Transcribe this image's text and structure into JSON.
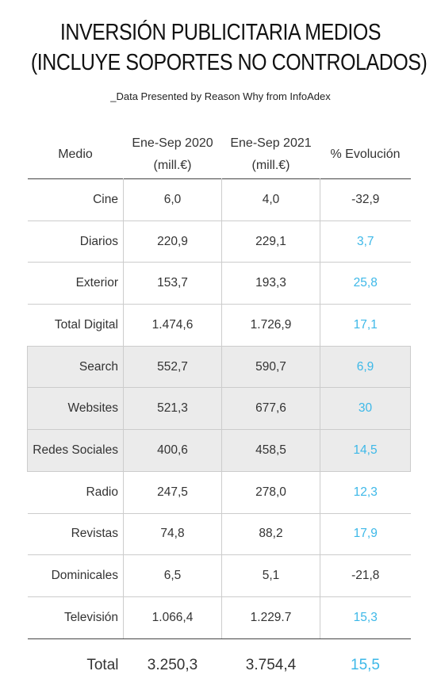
{
  "header": {
    "title_line1": "INVERSIÓN PUBLICITARIA MEDIOS",
    "title_line2": "(INCLUYE SOPORTES NO CONTROLADOS)",
    "subtitle": "_Data Presented by Reason Why from InfoAdex"
  },
  "columns": {
    "medio": "Medio",
    "y2020_line1": "Ene-Sep 2020",
    "y2020_line2": "(mill.€)",
    "y2021_line1": "Ene-Sep 2021",
    "y2021_line2": "(mill.€)",
    "evol": "% Evolución"
  },
  "rows": [
    {
      "medio": "Cine",
      "y2020": "6,0",
      "y2021": "4,0",
      "evol": "-32,9"
    },
    {
      "medio": "Diarios",
      "y2020": "220,9",
      "y2021": "229,1",
      "evol": "3,7"
    },
    {
      "medio": "Exterior",
      "y2020": "153,7",
      "y2021": "193,3",
      "evol": "25,8"
    },
    {
      "medio": "Total Digital",
      "y2020": "1.474,6",
      "y2021": "1.726,9",
      "evol": "17,1"
    },
    {
      "medio": "Search",
      "y2020": "552,7",
      "y2021": "590,7",
      "evol": "6,9"
    },
    {
      "medio": "Websites",
      "y2020": "521,3",
      "y2021": "677,6",
      "evol": "30"
    },
    {
      "medio": "Redes Sociales",
      "y2020": "400,6",
      "y2021": "458,5",
      "evol": "14,5"
    },
    {
      "medio": "Radio",
      "y2020": "247,5",
      "y2021": "278,0",
      "evol": "12,3"
    },
    {
      "medio": "Revistas",
      "y2020": "74,8",
      "y2021": "88,2",
      "evol": "17,9"
    },
    {
      "medio": "Dominicales",
      "y2020": "6,5",
      "y2021": "5,1",
      "evol": "-21,8"
    },
    {
      "medio": "Televisión",
      "y2020": "1.066,4",
      "y2021": "1.229.7",
      "evol": "15,3"
    }
  ],
  "total": {
    "label": "Total",
    "y2020": "3.250,3",
    "y2021": "3.754,4",
    "evol": "15,5"
  },
  "colors": {
    "positive": "#3db8e8",
    "shaded_row": "#ebebeb"
  }
}
